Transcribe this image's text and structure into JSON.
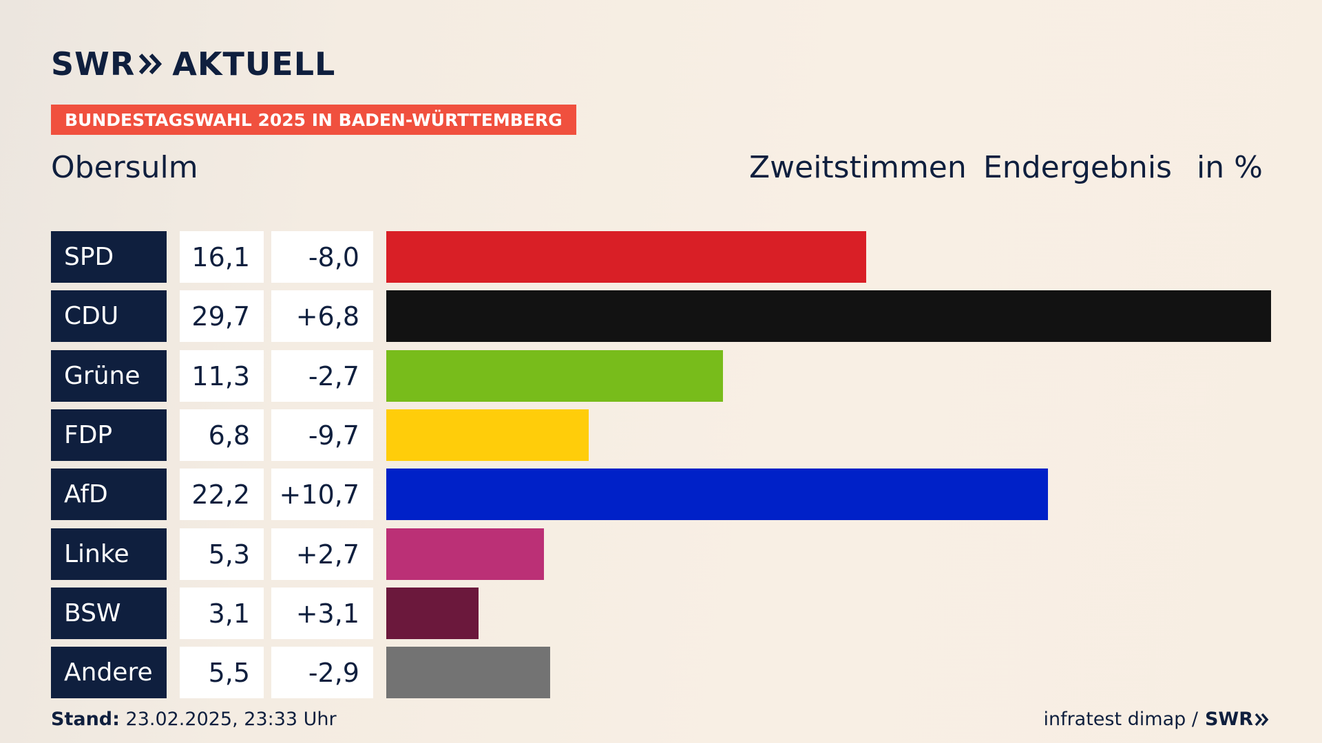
{
  "brand": {
    "swr": "SWR",
    "aktuell": "AKTUELL"
  },
  "banner": "BUNDESTAGSWAHL 2025 IN BADEN-WÜRTTEMBERG",
  "region": "Obersulm",
  "header": {
    "vote_type": "Zweitstimmen",
    "result_type": "Endergebnis",
    "unit": "in %"
  },
  "colors": {
    "navy": "#0f1f3e",
    "banner": "#f0503e",
    "SPD": "#d91f26",
    "CDU": "#121212",
    "Grüne": "#78bc1b",
    "FDP": "#ffcd0a",
    "AfD": "#0021c8",
    "Linke": "#bb3076",
    "BSW": "#6b183c",
    "Andere": "#737373"
  },
  "chart_data": {
    "type": "bar",
    "orientation": "horizontal",
    "categories": [
      "SPD",
      "CDU",
      "Grüne",
      "FDP",
      "AfD",
      "Linke",
      "BSW",
      "Andere"
    ],
    "values": [
      16.1,
      29.7,
      11.3,
      6.8,
      22.2,
      5.3,
      3.1,
      5.5
    ],
    "value_labels": [
      "16,1",
      "29,7",
      "11,3",
      "6,8",
      "22,2",
      "5,3",
      "3,1",
      "5,5"
    ],
    "changes": [
      "-8,0",
      "+6,8",
      "-2,7",
      "-9,7",
      "+10,7",
      "+2,7",
      "+3,1",
      "-2,9"
    ],
    "xlim": [
      0,
      29.7
    ]
  },
  "footer": {
    "stand_label": "Stand:",
    "stand_value": "23.02.2025, 23:33 Uhr",
    "source": "infratest dimap /",
    "source_brand": "SWR"
  }
}
